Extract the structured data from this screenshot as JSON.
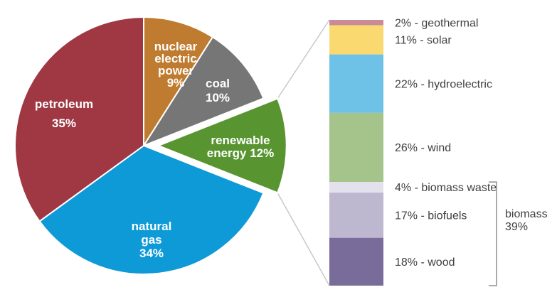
{
  "chart_data": {
    "type": "pie",
    "title": "",
    "description_visible_text_only": "U.S. energy consumption pie with exploded renewable slice and a 100% stacked breakdown bar",
    "pie": {
      "unit": "%",
      "start_at_12_oclock": true,
      "clockwise": true,
      "slices": [
        {
          "id": "nuclear",
          "name": "nuclear electric power",
          "pct": 9,
          "color": "#BF7B2F",
          "exploded": false,
          "label_lines": [
            "nuclear",
            "electric",
            "power",
            "9%"
          ]
        },
        {
          "id": "coal",
          "name": "coal",
          "pct": 10,
          "color": "#767676",
          "exploded": false,
          "label_lines": [
            "coal",
            "10%"
          ]
        },
        {
          "id": "renewable",
          "name": "renewable energy",
          "pct": 12,
          "color": "#589430",
          "exploded": true,
          "label_lines": [
            "renewable",
            "energy 12%"
          ]
        },
        {
          "id": "natural-gas",
          "name": "natural gas",
          "pct": 34,
          "color": "#0D9AD7",
          "exploded": false,
          "label_lines": [
            "natural",
            "gas",
            "34%"
          ]
        },
        {
          "id": "petroleum",
          "name": "petroleum",
          "pct": 35,
          "color": "#A03844",
          "exploded": false,
          "label_lines": [
            "petroleum",
            "35%"
          ]
        }
      ]
    },
    "breakdown_bar": {
      "parent_slice": "renewable energy",
      "segments": [
        {
          "id": "geothermal",
          "name": "geothermal",
          "pct": 2,
          "color": "#C98C96",
          "label": "2% - geothermal"
        },
        {
          "id": "solar",
          "name": "solar",
          "pct": 11,
          "color": "#FBD971",
          "label": "11% - solar"
        },
        {
          "id": "hydroelectric",
          "name": "hydroelectric",
          "pct": 22,
          "color": "#6FC2E7",
          "label": "22% - hydroelectric"
        },
        {
          "id": "wind",
          "name": "wind",
          "pct": 26,
          "color": "#A5C48C",
          "label": "26% - wind"
        },
        {
          "id": "biomass-waste",
          "name": "biomass waste",
          "pct": 4,
          "color": "#E3E1EC",
          "label": "4% - biomass waste"
        },
        {
          "id": "biofuels",
          "name": "biofuels",
          "pct": 17,
          "color": "#BEB7D0",
          "label": "17% - biofuels"
        },
        {
          "id": "wood",
          "name": "wood",
          "pct": 18,
          "color": "#796C9B",
          "label": "18% - wood"
        }
      ],
      "bracket": {
        "covers": [
          "biomass waste",
          "biofuels",
          "wood"
        ],
        "total_pct": 39,
        "label_lines": [
          "biomass",
          "39%"
        ]
      }
    },
    "colors": {
      "pie_label_text": "#FFFFFF",
      "bar_label_text": "#404040",
      "connector_line": "#C9C9C9",
      "bracket_line": "#8F8F8F",
      "slice_separator": "#FFFFFF",
      "background": "#FFFFFF"
    },
    "legend_position": "right-of-bar",
    "grid": false
  }
}
